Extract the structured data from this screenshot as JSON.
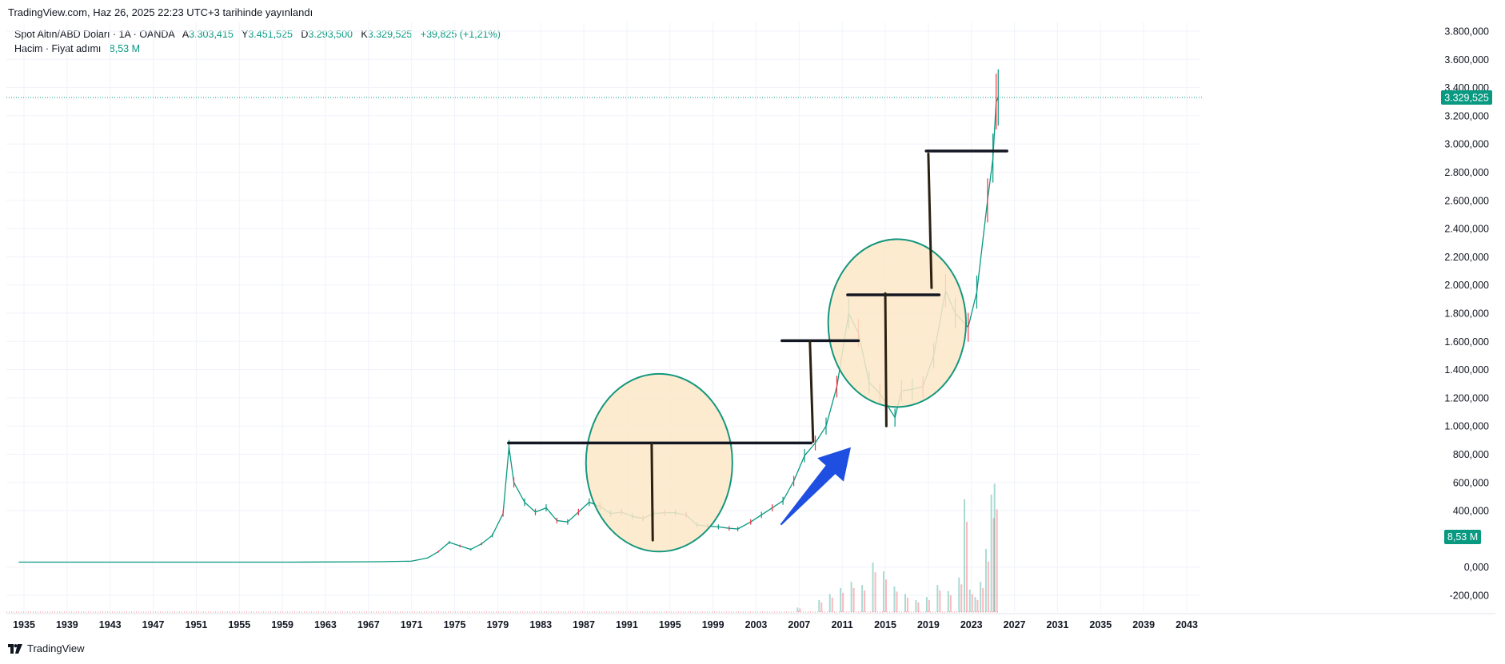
{
  "header": {
    "published": "TradingView.com, Haz 26, 2025 22:23 UTC+3 tarihinde yayınlandı"
  },
  "legend": {
    "symbol": "Spot Altın/ABD Doları · 1A · OANDA",
    "open_label": "A",
    "open_value": "3.303,415",
    "high_label": "Y",
    "high_value": "3.451,525",
    "low_label": "D",
    "low_value": "3.293,500",
    "close_label": "K",
    "close_value": "3.329,525",
    "change": "+39,825 (+1,21%)",
    "volume_label": "Hacim · Fiyat adımı",
    "volume_value": "8,53 M"
  },
  "colors": {
    "up": "#089981",
    "down": "#f23645",
    "circle_fill": "#fde8c8",
    "circle_stroke": "#14977e",
    "arrow": "#1f4fe0",
    "grid": "#f0f3fa"
  },
  "footer": {
    "brand": "TradingView",
    "logo_icon": "tradingview-logo-icon"
  },
  "chart_data": {
    "type": "line",
    "title": "Spot Altın/ABD Doları · 1A · OANDA",
    "xlim": [
      1934,
      2045
    ],
    "ylim": [
      -280000,
      3900000
    ],
    "price_scale_range": [
      -200000,
      3800000
    ],
    "y_ticks": [
      "3.800,000",
      "3.600,000",
      "3.400,000",
      "3.200,000",
      "3.000,000",
      "2.800,000",
      "2.600,000",
      "2.400,000",
      "2.200,000",
      "2.000,000",
      "1.800,000",
      "1.600,000",
      "1.400,000",
      "1.200,000",
      "1.000,000",
      "800,000",
      "600,000",
      "400,000",
      "0,000",
      "-200,000"
    ],
    "y_tick_values": [
      3800000,
      3600000,
      3400000,
      3200000,
      3000000,
      2800000,
      2600000,
      2400000,
      2200000,
      2000000,
      1800000,
      1600000,
      1400000,
      1200000,
      1000000,
      800000,
      600000,
      400000,
      0,
      -200000
    ],
    "x_ticks": [
      "1935",
      "1939",
      "1943",
      "1947",
      "1951",
      "1955",
      "1959",
      "1963",
      "1967",
      "1971",
      "1975",
      "1979",
      "1983",
      "1987",
      "1991",
      "1995",
      "1999",
      "2003",
      "2007",
      "2011",
      "2015",
      "2019",
      "2023",
      "2027",
      "2031",
      "2035",
      "2039",
      "2043"
    ],
    "x_tick_values": [
      1935,
      1939,
      1943,
      1947,
      1951,
      1955,
      1959,
      1963,
      1967,
      1971,
      1975,
      1979,
      1983,
      1987,
      1991,
      1995,
      1999,
      2003,
      2007,
      2011,
      2015,
      2019,
      2023,
      2027,
      2031,
      2035,
      2039,
      2043
    ],
    "price_series": {
      "x": [
        1934.5,
        1960,
        1968,
        1971,
        1972.5,
        1973.5,
        1974.5,
        1975.5,
        1976.5,
        1977.5,
        1978.5,
        1979.5,
        1980.05,
        1980.5,
        1981.5,
        1982.5,
        1983.5,
        1984.5,
        1985.5,
        1986.5,
        1987.5,
        1988.5,
        1989.5,
        1990.5,
        1991.5,
        1992.5,
        1993.5,
        1994.5,
        1995.5,
        1996.5,
        1997.5,
        1998.5,
        1999.5,
        2000.5,
        2001.3,
        2002.5,
        2003.5,
        2004.5,
        2005.5,
        2006.5,
        2007.5,
        2008.5,
        2009.5,
        2010.5,
        2011.6,
        2012.5,
        2013.5,
        2014.5,
        2015.9,
        2016.5,
        2017.5,
        2018.5,
        2019.5,
        2020.6,
        2021.5,
        2022.7,
        2023.5,
        2024.5,
        2025.0,
        2025.3,
        2025.49
      ],
      "y": [
        35000,
        35000,
        38000,
        42000,
        65000,
        110000,
        175000,
        150000,
        125000,
        165000,
        225000,
        380000,
        850000,
        600000,
        460000,
        390000,
        420000,
        330000,
        320000,
        390000,
        460000,
        430000,
        380000,
        390000,
        360000,
        345000,
        380000,
        385000,
        385000,
        370000,
        300000,
        290000,
        285000,
        275000,
        270000,
        320000,
        370000,
        420000,
        470000,
        610000,
        790000,
        880000,
        1000000,
        1280000,
        1800000,
        1660000,
        1310000,
        1230000,
        1060000,
        1250000,
        1260000,
        1280000,
        1500000,
        1960000,
        1800000,
        1700000,
        1950000,
        2600000,
        2900000,
        3300000,
        3329525
      ]
    },
    "current_price": 3329525,
    "current_price_label": "3.329,525",
    "volume_series": {
      "x": [
        2007,
        2009,
        2010,
        2011,
        2012,
        2013,
        2014,
        2015,
        2016,
        2017,
        2018,
        2019,
        2020,
        2021,
        2022,
        2022.5,
        2023,
        2023.5,
        2024,
        2024.5,
        2025,
        2025.3
      ],
      "values": [
        0.3,
        0.8,
        1.2,
        1.6,
        2.0,
        1.8,
        3.3,
        2.7,
        1.7,
        1.2,
        0.8,
        1.0,
        1.8,
        1.4,
        2.3,
        7.5,
        1.5,
        1.0,
        2.0,
        4.2,
        7.8,
        8.53
      ],
      "label": "8,53 M",
      "axis_max": 12
    },
    "annotations": {
      "horizontal_lines": [
        {
          "x1": 1980.0,
          "x2": 2008.1,
          "y": 880000
        },
        {
          "x1": 2005.4,
          "x2": 2012.5,
          "y": 1605000
        },
        {
          "x1": 2011.5,
          "x2": 2020.0,
          "y": 1930000
        },
        {
          "x1": 2018.8,
          "x2": 2026.3,
          "y": 2950000
        }
      ],
      "vertical_lines": [
        {
          "x1": 1993.3,
          "y1": 880000,
          "x2": 1993.4,
          "y2": 190000
        },
        {
          "x1": 2008.0,
          "y1": 1600000,
          "x2": 2008.3,
          "y2": 890000
        },
        {
          "x1": 2015.0,
          "y1": 1940000,
          "x2": 2015.1,
          "y2": 1000000
        },
        {
          "x1": 2019.0,
          "y1": 2930000,
          "x2": 2019.3,
          "y2": 1980000
        }
      ],
      "circles": [
        {
          "cx": 1994.0,
          "cy": 740000,
          "rx": 6.8,
          "ry": 630000
        },
        {
          "cx": 2016.1,
          "cy": 1730000,
          "rx": 6.4,
          "ry": 595000
        }
      ],
      "arrow": {
        "x1": 2005.3,
        "y1": 300000,
        "x2": 2011.8,
        "y2": 850000
      }
    }
  }
}
